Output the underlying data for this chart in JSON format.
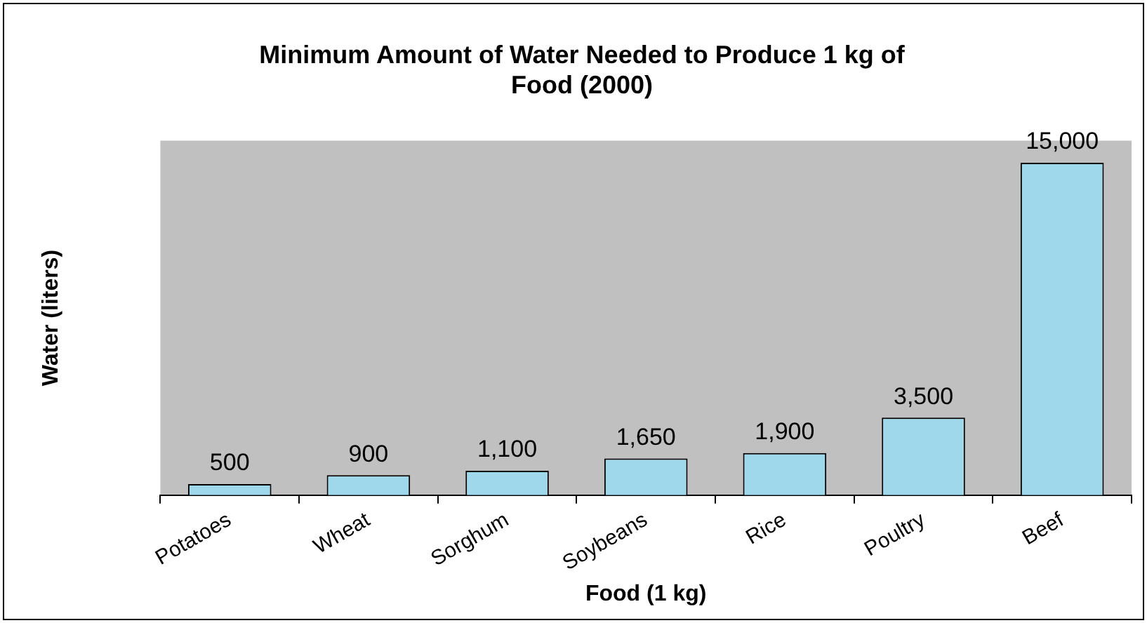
{
  "chart_data": {
    "type": "bar",
    "title": "Minimum Amount of Water Needed to Produce 1 kg of Food (2000)",
    "xlabel": "Food (1 kg)",
    "ylabel": "Water (liters)",
    "categories": [
      "Potatoes",
      "Wheat",
      "Sorghum",
      "Soybeans",
      "Rice",
      "Poultry",
      "Beef"
    ],
    "values": [
      500,
      900,
      1100,
      1650,
      1900,
      3500,
      15000
    ],
    "value_labels": [
      "500",
      "900",
      "1,100",
      "1,650",
      "1,900",
      "3,500",
      "15,000"
    ],
    "color": "#9fd8ea",
    "grid": false,
    "legend": false
  }
}
